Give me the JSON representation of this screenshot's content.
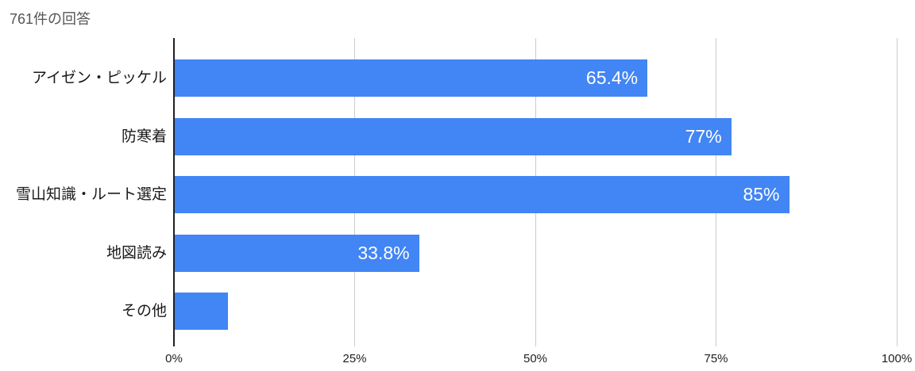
{
  "header": {
    "response_count": "761件の回答"
  },
  "colors": {
    "bar": "#4285F4",
    "axis_line": "#212121",
    "gridline": "#cccccc",
    "title_text": "#555555",
    "category_text": "#1a1a1a",
    "tick_text": "#222222",
    "bar_label_text": "#ffffff",
    "background": "#ffffff"
  },
  "chart_data": {
    "type": "bar",
    "orientation": "horizontal",
    "title": "761件の回答",
    "categories": [
      "アイゼン・ピッケル",
      "防寒着",
      "雪山知識・ルート選定",
      "地図読み",
      "その他"
    ],
    "values": [
      65.4,
      77,
      85,
      33.8,
      7.4
    ],
    "bar_labels": [
      "65.4%",
      "77%",
      "85%",
      "33.8%",
      ""
    ],
    "xlabel": "",
    "ylabel": "",
    "xlim": [
      0,
      100
    ],
    "x_ticks": [
      0,
      25,
      50,
      75,
      100
    ],
    "x_tick_labels": [
      "0%",
      "25%",
      "50%",
      "75%",
      "100%"
    ],
    "grid": true,
    "legend": false
  }
}
